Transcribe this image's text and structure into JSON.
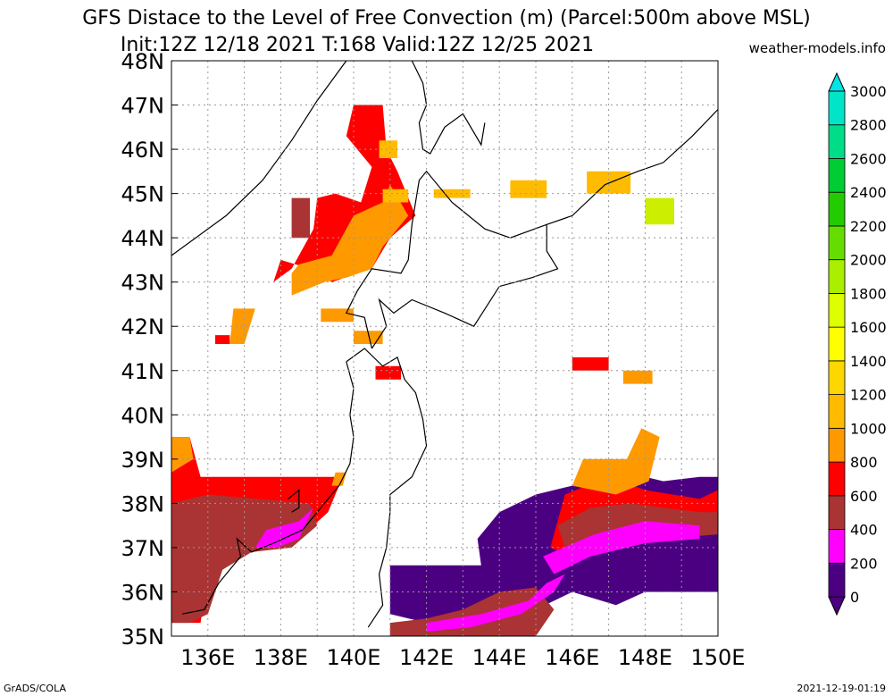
{
  "title": {
    "line1": "GFS Distace to the Level of Free Convection (m) (Parcel:500m above MSL)",
    "line2": "Init:12Z 12/18 2021 T:168 Valid:12Z 12/25 2021"
  },
  "credit": "weather-models.info",
  "footer": {
    "left": "GrADS/COLA",
    "right": "2021-12-19-01:19"
  },
  "map": {
    "lon_range": [
      135,
      150
    ],
    "lat_range": [
      35,
      48
    ],
    "lat_labels": [
      "35N",
      "36N",
      "37N",
      "38N",
      "39N",
      "40N",
      "41N",
      "42N",
      "43N",
      "44N",
      "45N",
      "46N",
      "47N",
      "48N"
    ],
    "lon_labels": [
      "136E",
      "138E",
      "140E",
      "142E",
      "144E",
      "146E",
      "148E",
      "150E"
    ],
    "grid": "dotted"
  },
  "colorbar": {
    "labels": [
      "0",
      "200",
      "400",
      "600",
      "800",
      "1000",
      "1200",
      "1400",
      "1600",
      "1800",
      "2000",
      "2200",
      "2400",
      "2600",
      "2800",
      "3000"
    ],
    "colors": [
      "#4b0082",
      "#ff00ff",
      "#aa3333",
      "#ff0000",
      "#ff9900",
      "#ffbb00",
      "#ffd700",
      "#ffff00",
      "#ddff00",
      "#aaee00",
      "#66dd00",
      "#22cc00",
      "#00cc33",
      "#00dd88",
      "#00e5c8",
      "#00e5e5"
    ]
  }
}
